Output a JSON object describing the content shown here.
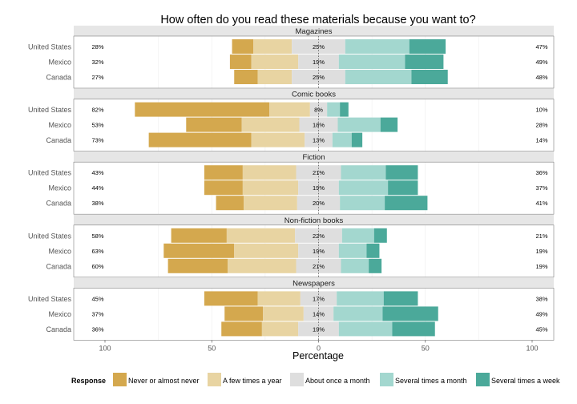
{
  "chart_data": {
    "type": "bar",
    "subtype": "diverging-likert",
    "title": "How often do you read these materials because you want to?",
    "xlabel": "Percentage",
    "xlim": [
      -100,
      100
    ],
    "x_ticks": [
      -100,
      -50,
      0,
      50,
      100
    ],
    "x_tick_labels": [
      "100",
      "50",
      "0",
      "50",
      "100"
    ],
    "legend": {
      "title": "Response",
      "position": "bottom",
      "items": [
        {
          "label": "Never or almost never",
          "color": "#D4A84E"
        },
        {
          "label": "A few times a year",
          "color": "#E8D4A2"
        },
        {
          "label": "About once a month",
          "color": "#DEDEDE"
        },
        {
          "label": "Several times a month",
          "color": "#A3D7CF"
        },
        {
          "label": "Several times a week",
          "color": "#4BA99A"
        }
      ]
    },
    "panels": [
      {
        "name": "Magazines",
        "rows": [
          {
            "country": "United States",
            "values": [
              10,
              18,
              25,
              30,
              17
            ],
            "left_label": "28%",
            "center_label": "25%",
            "right_label": "47%"
          },
          {
            "country": "Mexico",
            "values": [
              10,
              22,
              19,
              31,
              18
            ],
            "left_label": "32%",
            "center_label": "19%",
            "right_label": "49%"
          },
          {
            "country": "Canada",
            "values": [
              11,
              16,
              25,
              31,
              17
            ],
            "left_label": "27%",
            "center_label": "25%",
            "right_label": "48%"
          }
        ]
      },
      {
        "name": "Comic books",
        "rows": [
          {
            "country": "United States",
            "values": [
              63,
              19,
              8,
              6,
              4
            ],
            "left_label": "82%",
            "center_label": "8%",
            "right_label": "10%"
          },
          {
            "country": "Mexico",
            "values": [
              26,
              27,
              18,
              20,
              8
            ],
            "left_label": "53%",
            "center_label": "18%",
            "right_label": "28%"
          },
          {
            "country": "Canada",
            "values": [
              48,
              25,
              13,
              9,
              5
            ],
            "left_label": "73%",
            "center_label": "13%",
            "right_label": "14%"
          }
        ]
      },
      {
        "name": "Fiction",
        "rows": [
          {
            "country": "United States",
            "values": [
              18,
              25,
              21,
              21,
              15
            ],
            "left_label": "43%",
            "center_label": "21%",
            "right_label": "36%"
          },
          {
            "country": "Mexico",
            "values": [
              18,
              26,
              19,
              23,
              14
            ],
            "left_label": "44%",
            "center_label": "19%",
            "right_label": "37%"
          },
          {
            "country": "Canada",
            "values": [
              13,
              25,
              20,
              21,
              20
            ],
            "left_label": "38%",
            "center_label": "20%",
            "right_label": "41%"
          }
        ]
      },
      {
        "name": "Non-fiction books",
        "rows": [
          {
            "country": "United States",
            "values": [
              26,
              32,
              22,
              15,
              6
            ],
            "left_label": "58%",
            "center_label": "22%",
            "right_label": "21%"
          },
          {
            "country": "Mexico",
            "values": [
              33,
              30,
              19,
              13,
              6
            ],
            "left_label": "63%",
            "center_label": "19%",
            "right_label": "19%"
          },
          {
            "country": "Canada",
            "values": [
              28,
              32,
              21,
              13,
              6
            ],
            "left_label": "60%",
            "center_label": "21%",
            "right_label": "19%"
          }
        ]
      },
      {
        "name": "Newspapers",
        "rows": [
          {
            "country": "United States",
            "values": [
              25,
              20,
              17,
              22,
              16
            ],
            "left_label": "45%",
            "center_label": "17%",
            "right_label": "38%"
          },
          {
            "country": "Mexico",
            "values": [
              18,
              19,
              14,
              23,
              26
            ],
            "left_label": "37%",
            "center_label": "14%",
            "right_label": "49%"
          },
          {
            "country": "Canada",
            "values": [
              19,
              17,
              19,
              25,
              20
            ],
            "left_label": "36%",
            "center_label": "19%",
            "right_label": "45%"
          }
        ]
      }
    ]
  }
}
